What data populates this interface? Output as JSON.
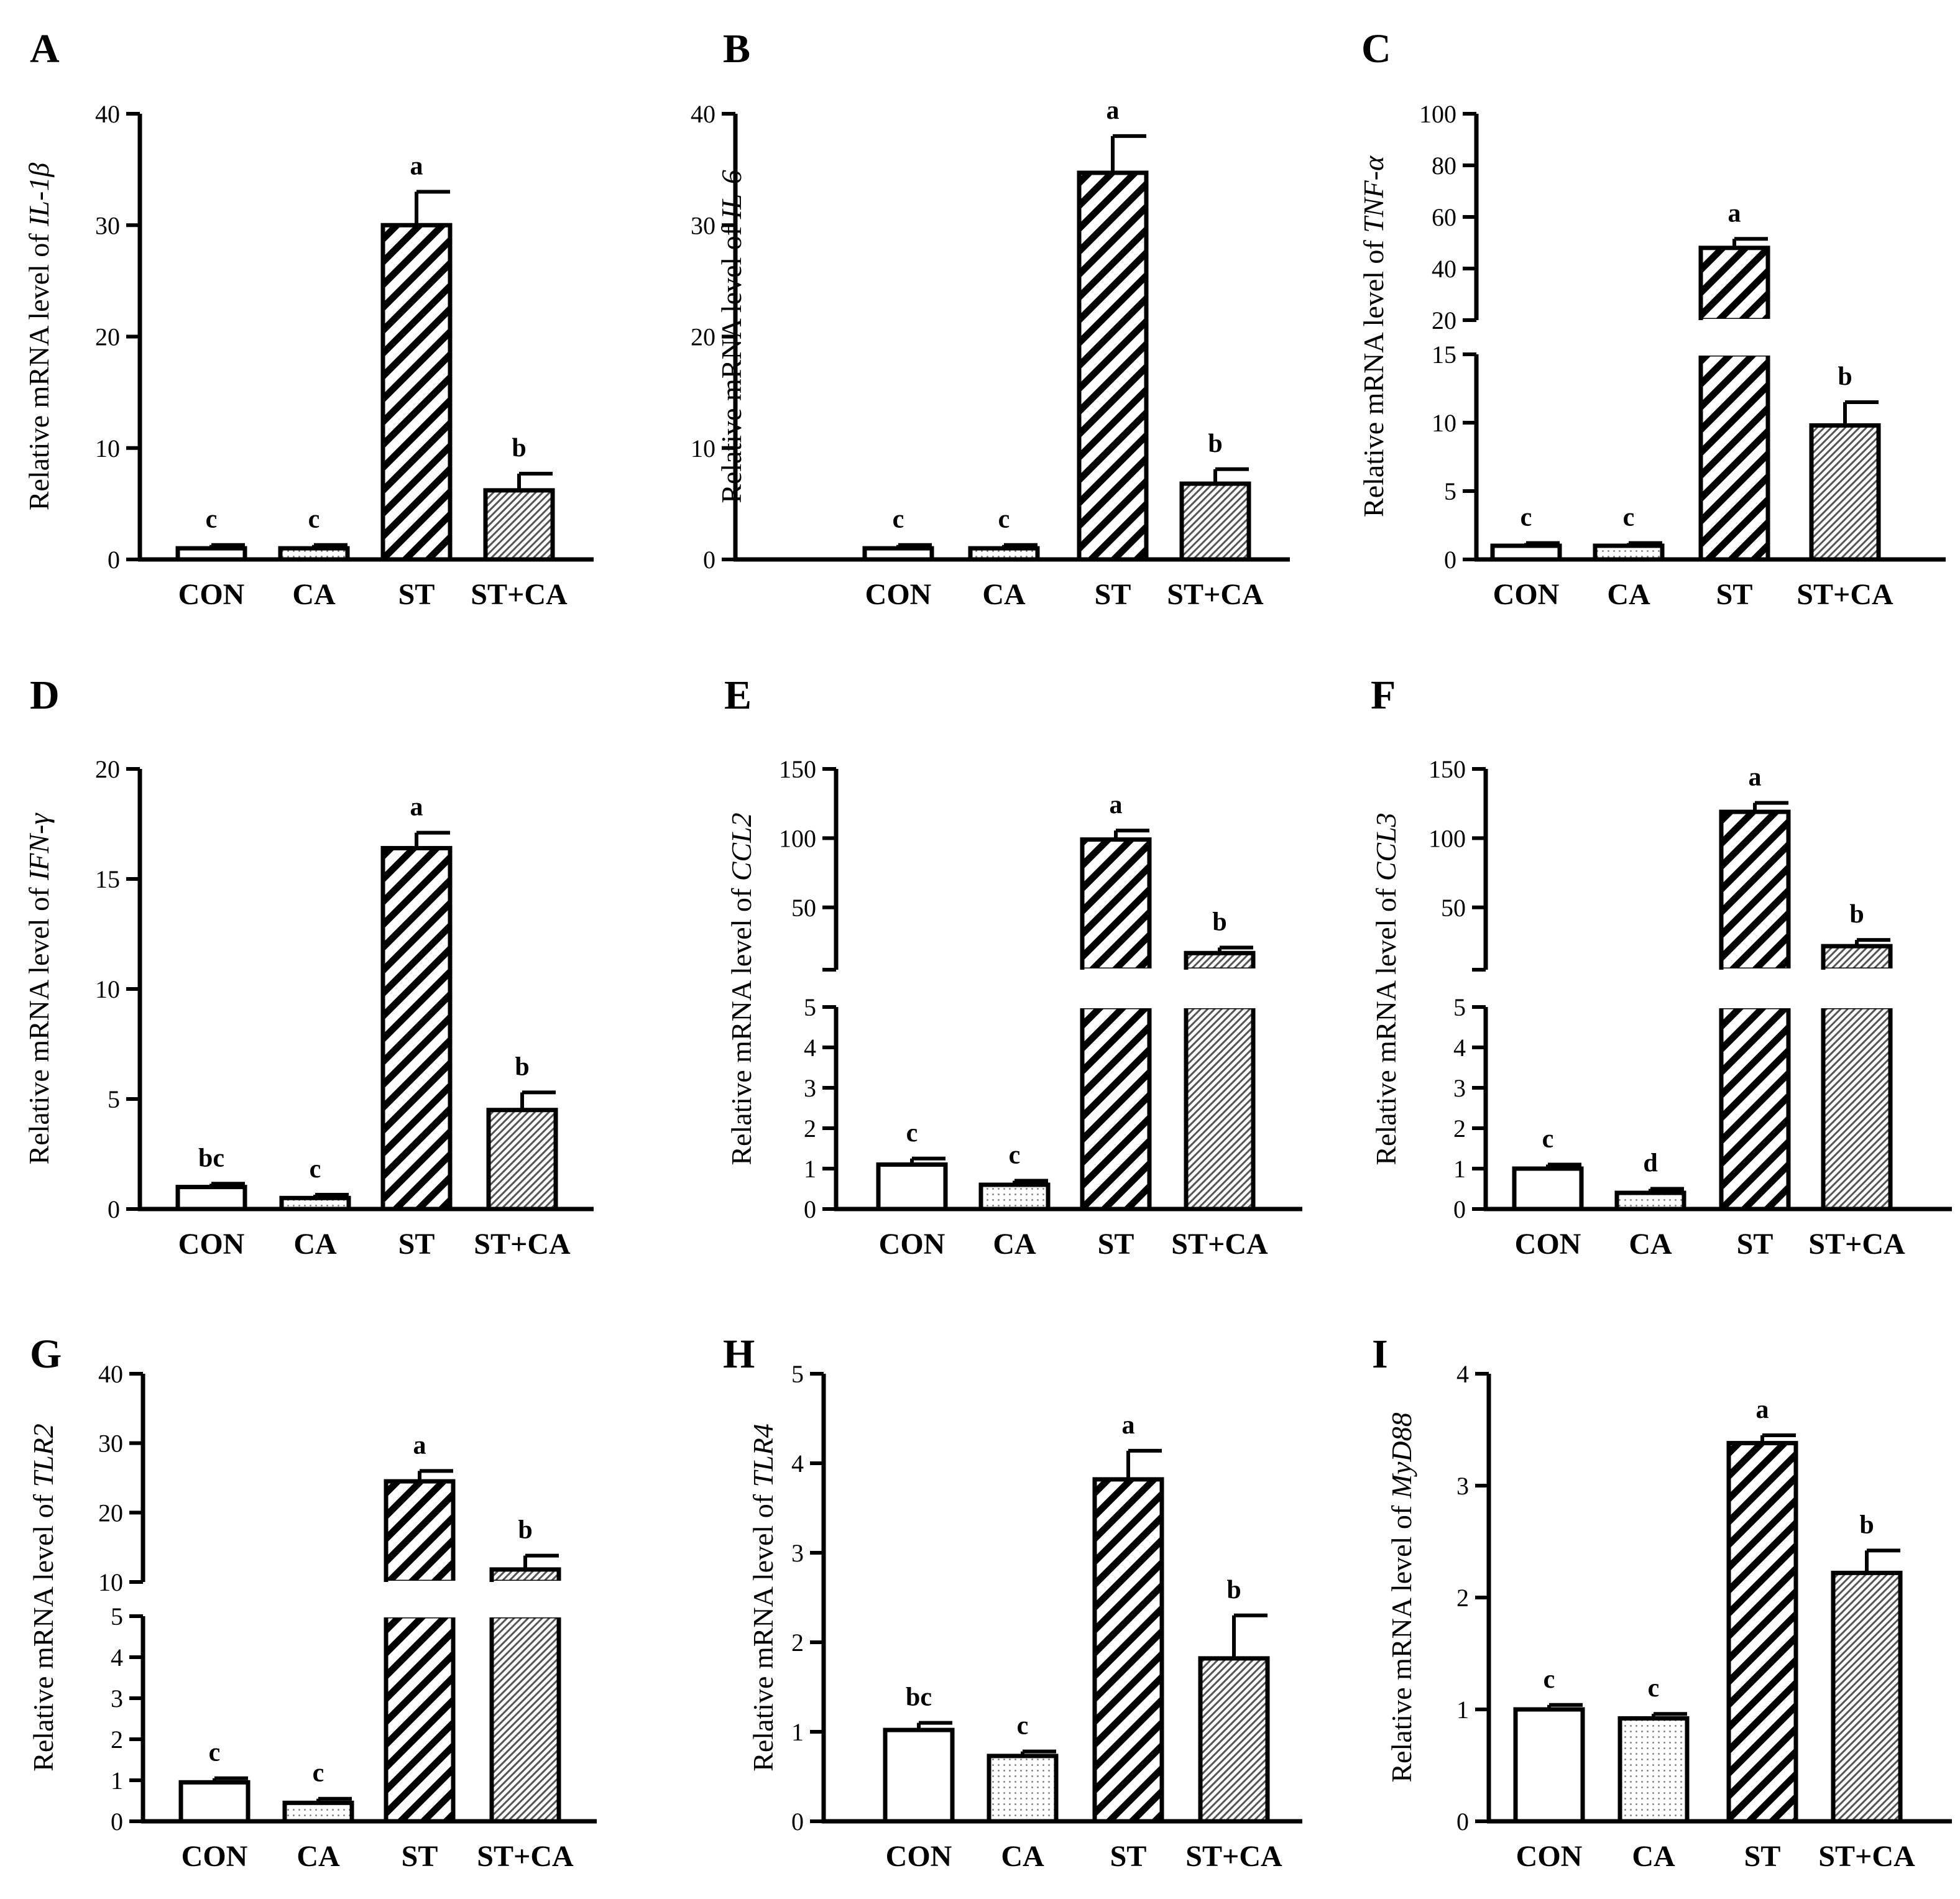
{
  "chart_data": [
    {
      "panel": "A",
      "type": "bar",
      "ylabel_prefix": "Relative mRNA level of ",
      "gene": "IL-1β",
      "categories": [
        "CON",
        "CA",
        "ST",
        "ST+CA"
      ],
      "values": [
        1.0,
        1.0,
        30.0,
        6.2
      ],
      "errors": [
        0.3,
        0.3,
        3.0,
        1.5
      ],
      "significance": [
        "c",
        "c",
        "a",
        "b"
      ],
      "ylim": [
        0,
        40
      ],
      "yticks": [
        0,
        10,
        20,
        30,
        40
      ],
      "ytick_labels": [
        "0",
        "10",
        "20",
        "30",
        "40"
      ]
    },
    {
      "panel": "B",
      "type": "bar",
      "ylabel_prefix": "Relative mRNA level of ",
      "gene": "IL-6",
      "categories": [
        "CON",
        "CA",
        "ST",
        "ST+CA"
      ],
      "values": [
        1.0,
        1.0,
        34.7,
        6.8
      ],
      "errors": [
        0.3,
        0.3,
        3.3,
        1.3
      ],
      "significance": [
        "c",
        "c",
        "a",
        "b"
      ],
      "ylim": [
        0,
        40
      ],
      "yticks": [
        0,
        10,
        20,
        30,
        40
      ],
      "ytick_labels": [
        "0",
        "10",
        "20",
        "30",
        "40"
      ]
    },
    {
      "panel": "C",
      "type": "bar",
      "ylabel_prefix": "Relative mRNA level of ",
      "gene": "TNF-α",
      "categories": [
        "CON",
        "CA",
        "ST",
        "ST+CA"
      ],
      "values": [
        1.0,
        1.0,
        48.0,
        9.8
      ],
      "errors": [
        0.2,
        0.2,
        3.5,
        1.7
      ],
      "significance": [
        "c",
        "c",
        "a",
        "b"
      ],
      "broken_axis": {
        "lower": [
          0,
          15
        ],
        "upper": [
          20,
          100
        ]
      },
      "yticks": [
        0,
        5,
        10,
        15,
        20,
        40,
        60,
        80,
        100
      ],
      "ytick_labels": [
        "0",
        "5",
        "10",
        "15",
        "20",
        "40",
        "60",
        "80",
        "100"
      ]
    },
    {
      "panel": "D",
      "type": "bar",
      "ylabel_prefix": "Relative mRNA level of ",
      "gene": "IFN-γ",
      "categories": [
        "CON",
        "CA",
        "ST",
        "ST+CA"
      ],
      "values": [
        1.0,
        0.5,
        16.4,
        4.5
      ],
      "errors": [
        0.15,
        0.15,
        0.7,
        0.8
      ],
      "significance": [
        "bc",
        "c",
        "a",
        "b"
      ],
      "ylim": [
        0,
        20
      ],
      "yticks": [
        0,
        5,
        10,
        15,
        20
      ],
      "ytick_labels": [
        "0",
        "5",
        "10",
        "15",
        "20"
      ]
    },
    {
      "panel": "E",
      "type": "bar",
      "ylabel_prefix": "Relative mRNA level of ",
      "gene": "CCL2",
      "categories": [
        "CON",
        "CA",
        "ST",
        "ST+CA"
      ],
      "values": [
        1.1,
        0.6,
        99.0,
        17.0
      ],
      "errors": [
        0.15,
        0.1,
        6.5,
        4.0
      ],
      "significance": [
        "c",
        "c",
        "a",
        "b"
      ],
      "broken_axis": {
        "lower": [
          0,
          5
        ],
        "upper": [
          5,
          150
        ]
      },
      "yticks": [
        0,
        1,
        2,
        3,
        4,
        5,
        50,
        100,
        150
      ],
      "ytick_labels": [
        "0",
        "1",
        "2",
        "3",
        "4",
        "5",
        "50",
        "100",
        "150"
      ]
    },
    {
      "panel": "F",
      "type": "bar",
      "ylabel_prefix": "Relative mRNA level of ",
      "gene": "CCL3",
      "categories": [
        "CON",
        "CA",
        "ST",
        "ST+CA"
      ],
      "values": [
        1.0,
        0.4,
        119.0,
        22.0
      ],
      "errors": [
        0.1,
        0.1,
        6.5,
        4.5
      ],
      "significance": [
        "c",
        "d",
        "a",
        "b"
      ],
      "broken_axis": {
        "lower": [
          0,
          5
        ],
        "upper": [
          5,
          150
        ]
      },
      "yticks": [
        0,
        1,
        2,
        3,
        4,
        5,
        50,
        100,
        150
      ],
      "ytick_labels": [
        "0",
        "1",
        "2",
        "3",
        "4",
        "5",
        "50",
        "100",
        "150"
      ]
    },
    {
      "panel": "G",
      "type": "bar",
      "ylabel_prefix": "Relative mRNA level of ",
      "gene": "TLR2",
      "categories": [
        "CON",
        "CA",
        "ST",
        "ST+CA"
      ],
      "values": [
        0.95,
        0.45,
        24.5,
        11.8
      ],
      "errors": [
        0.1,
        0.1,
        1.5,
        2.0
      ],
      "significance": [
        "c",
        "c",
        "a",
        "b"
      ],
      "broken_axis": {
        "lower": [
          0,
          5
        ],
        "upper": [
          10,
          40
        ]
      },
      "yticks": [
        0,
        1,
        2,
        3,
        4,
        5,
        10,
        20,
        30,
        40
      ],
      "ytick_labels": [
        "0",
        "1",
        "2",
        "3",
        "4",
        "5",
        "10",
        "20",
        "30",
        "40"
      ]
    },
    {
      "panel": "H",
      "type": "bar",
      "ylabel_prefix": "Relative mRNA level of ",
      "gene": "TLR4",
      "categories": [
        "CON",
        "CA",
        "ST",
        "ST+CA"
      ],
      "values": [
        1.02,
        0.73,
        3.82,
        1.82
      ],
      "errors": [
        0.08,
        0.05,
        0.32,
        0.48
      ],
      "significance": [
        "bc",
        "c",
        "a",
        "b"
      ],
      "ylim": [
        0,
        5
      ],
      "yticks": [
        0,
        1,
        2,
        3,
        4,
        5
      ],
      "ytick_labels": [
        "0",
        "1",
        "2",
        "3",
        "4",
        "5"
      ]
    },
    {
      "panel": "I",
      "type": "bar",
      "ylabel_prefix": "Relative mRNA level of ",
      "gene": "MyD88",
      "categories": [
        "CON",
        "CA",
        "ST",
        "ST+CA"
      ],
      "values": [
        1.0,
        0.92,
        3.38,
        2.22
      ],
      "errors": [
        0.04,
        0.04,
        0.07,
        0.2
      ],
      "significance": [
        "c",
        "c",
        "a",
        "b"
      ],
      "ylim": [
        0,
        4
      ],
      "yticks": [
        0,
        1,
        2,
        3,
        4
      ],
      "ytick_labels": [
        "0",
        "1",
        "2",
        "3",
        "4"
      ]
    }
  ]
}
